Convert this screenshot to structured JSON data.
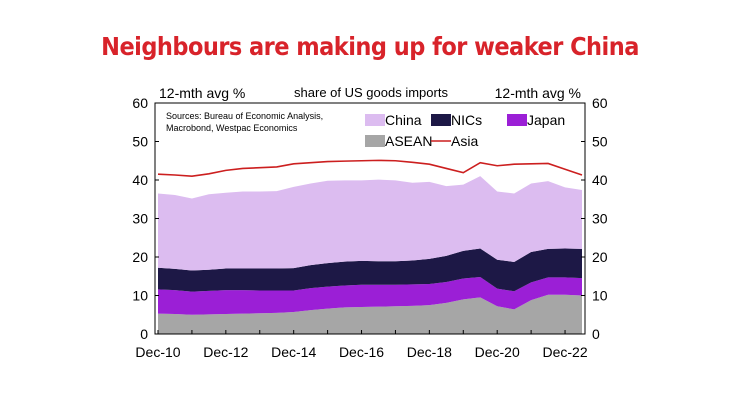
{
  "title": "Neighbours are making up for weaker China",
  "chart_data": {
    "type": "area",
    "left_axis_label": "12-mth avg %",
    "right_axis_label": "12-mth avg %",
    "subtitle": "share of US goods imports",
    "source": [
      "Sources: Bureau of Economic Analysis,",
      "Macrobond, Westpac Economics"
    ],
    "x": [
      "Dec-10",
      "Jun-11",
      "Dec-11",
      "Jun-12",
      "Dec-12",
      "Jun-13",
      "Dec-13",
      "Jun-14",
      "Dec-14",
      "Jun-15",
      "Dec-15",
      "Jun-16",
      "Dec-16",
      "Jun-17",
      "Dec-17",
      "Jun-18",
      "Dec-18",
      "Jun-19",
      "Dec-19",
      "Jun-20",
      "Dec-20",
      "Jun-21",
      "Dec-21",
      "Jun-22",
      "Dec-22",
      "Mar-23"
    ],
    "x_ticks": [
      "Dec-10",
      "Dec-12",
      "Dec-14",
      "Dec-16",
      "Dec-18",
      "Dec-20",
      "Dec-22"
    ],
    "ylim": [
      0,
      60
    ],
    "y_ticks": [
      0,
      10,
      20,
      30,
      40,
      50,
      60
    ],
    "stack_order": [
      "ASEAN",
      "Japan",
      "NICs",
      "China"
    ],
    "series": [
      {
        "name": "ASEAN",
        "kind": "area",
        "color": "#a6a6a6",
        "values": [
          5.3,
          5.2,
          5.0,
          5.1,
          5.2,
          5.3,
          5.4,
          5.5,
          5.7,
          6.2,
          6.6,
          6.9,
          7.0,
          7.1,
          7.2,
          7.3,
          7.5,
          8.1,
          9.0,
          9.5,
          7.2,
          6.4,
          8.8,
          10.2,
          10.2,
          10.0
        ]
      },
      {
        "name": "Japan",
        "kind": "area",
        "color": "#9b1fd6",
        "values": [
          6.3,
          6.2,
          6.0,
          6.1,
          6.2,
          6.1,
          5.9,
          5.8,
          5.6,
          5.7,
          5.7,
          5.7,
          5.8,
          5.7,
          5.6,
          5.6,
          5.5,
          5.4,
          5.4,
          5.3,
          4.6,
          4.7,
          4.6,
          4.5,
          4.5,
          4.5
        ]
      },
      {
        "name": "NICs",
        "kind": "area",
        "color": "#1d1846",
        "values": [
          5.6,
          5.5,
          5.5,
          5.5,
          5.6,
          5.6,
          5.7,
          5.7,
          5.8,
          6.0,
          6.1,
          6.2,
          6.2,
          6.1,
          6.1,
          6.2,
          6.5,
          6.8,
          7.2,
          7.4,
          7.5,
          7.6,
          7.9,
          7.4,
          7.5,
          7.6
        ]
      },
      {
        "name": "China",
        "kind": "area",
        "color": "#dcbcf0",
        "values": [
          19.3,
          19.2,
          18.7,
          19.6,
          19.7,
          20.0,
          20.0,
          20.1,
          21.1,
          21.2,
          21.4,
          21.1,
          20.9,
          21.2,
          21.0,
          20.2,
          20.0,
          18.1,
          17.2,
          18.8,
          17.7,
          17.8,
          17.8,
          17.6,
          15.9,
          15.3
        ]
      },
      {
        "name": "Asia",
        "kind": "line",
        "color": "#cc1f1f",
        "values": [
          41.5,
          41.3,
          41.0,
          41.6,
          42.5,
          43.0,
          43.2,
          43.4,
          44.2,
          44.5,
          44.8,
          44.9,
          45.0,
          45.1,
          45.0,
          44.6,
          44.1,
          43.0,
          41.9,
          44.5,
          43.7,
          44.1,
          44.2,
          44.3,
          42.8,
          41.3
        ]
      }
    ]
  }
}
